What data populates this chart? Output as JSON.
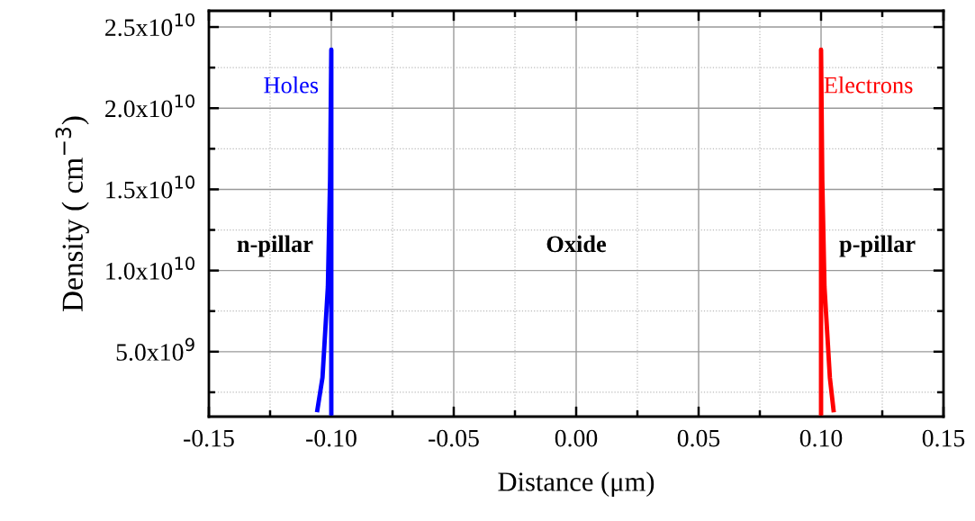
{
  "chart_data": {
    "type": "line",
    "xlabel": "Distance (μm)",
    "ylabel": "Density ( cm$^{−3}$)",
    "series": [
      {
        "name": "Holes",
        "color": "#0000ff",
        "x": [
          -0.1057,
          -0.1036,
          -0.1014,
          -0.1005,
          -0.1,
          -0.1
        ],
        "values": [
          1400000000.0,
          3400000000.0,
          9000000000.0,
          15600000000.0,
          23600000000.0,
          1200000000.0
        ]
      },
      {
        "name": "Electrons",
        "color": "#ff0000",
        "x": [
          0.1,
          0.1,
          0.1005,
          0.1014,
          0.1036,
          0.1051
        ],
        "values": [
          1200000000.0,
          23600000000.0,
          15600000000.0,
          9000000000.0,
          3400000000.0,
          1400000000.0
        ]
      }
    ],
    "xlim": [
      -0.15,
      0.15
    ],
    "xticks": [
      {
        "value": -0.15,
        "label": "-0.15"
      },
      {
        "value": -0.1,
        "label": "-0.10"
      },
      {
        "value": -0.05,
        "label": "-0.05"
      },
      {
        "value": 0,
        "label": "0.00"
      },
      {
        "value": 0.05,
        "label": "0.05"
      },
      {
        "value": 0.1,
        "label": "0.10"
      },
      {
        "value": 0.15,
        "label": "0.15"
      }
    ],
    "ylim": [
      1000000000.0,
      26000000000.0
    ],
    "yticks": [
      {
        "value": 5000000000.0,
        "label": "5.0x10$^{9}$"
      },
      {
        "value": 10000000000.0,
        "label": "1.0x10$^{10}$"
      },
      {
        "value": 15000000000.0,
        "label": "1.5x10$^{10}$"
      },
      {
        "value": 20000000000.0,
        "label": "2.0x10$^{10}$"
      },
      {
        "value": 25000000000.0,
        "label": "2.5x10$^{10}$"
      }
    ],
    "annotations": [
      "n-pillar",
      "Oxide",
      "p-pillar"
    ],
    "grid": true,
    "marker": "none",
    "line_style": "solid"
  }
}
